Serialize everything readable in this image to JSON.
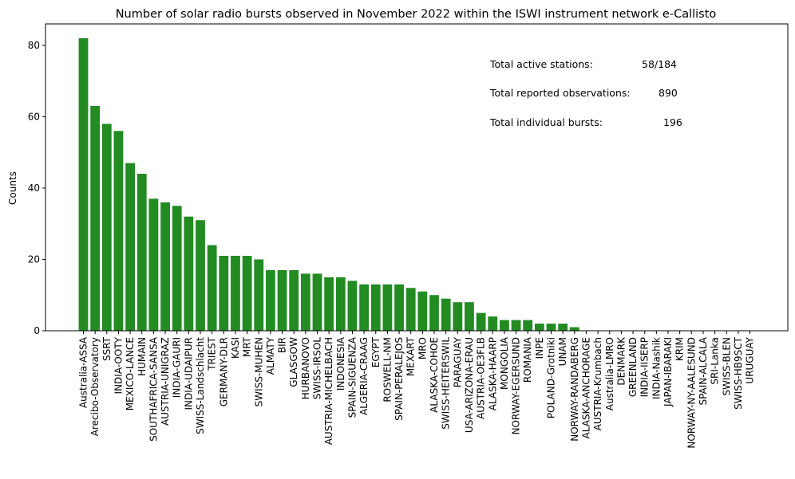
{
  "chart_data": {
    "type": "bar",
    "title": "Number of solar radio bursts observed in November 2022 within the ISWI instrument network e-Callisto",
    "xlabel": "",
    "ylabel": "Counts",
    "ylim": [
      0,
      86
    ],
    "yticks": [
      0,
      20,
      40,
      60,
      80
    ],
    "bar_color": "#228b22",
    "grid": false,
    "categories": [
      "Australia-ASSA",
      "Arecibo-Observatory",
      "SSRT",
      "INDIA-OOTY",
      "MEXICO-LANCE",
      "HUMAIN",
      "SOUTHAFRICA-SANSA",
      "AUSTRIA-UNIGRAZ",
      "INDIA-GAURI",
      "INDIA-UDAIPUR",
      "SWISS-Landschlacht",
      "TRIEST",
      "GERMANY-DLR",
      "KASI",
      "MRT",
      "SWISS-MUHEN",
      "ALMATY",
      "BIR",
      "GLASGOW",
      "HURBANOVO",
      "SWISS-IRSOL",
      "AUSTRIA-MICHELBACH",
      "INDONESIA",
      "SPAIN-SIGUENZA",
      "ALGERIA-CRAAG",
      "EGYPT",
      "ROSWELL-NM",
      "SPAIN-PERALEJOS",
      "MEXART",
      "MRO",
      "ALASKA-COHOE",
      "SWISS-HEITERSWIL",
      "PARAGUAY",
      "USA-ARIZONA-ERAU",
      "AUSTRIA-OE3FLB",
      "ALASKA-HAARP",
      "MONGOLIA",
      "NORWAY-EGERSUND",
      "ROMANIA",
      "INPE",
      "POLAND-Grotniki",
      "UNAM",
      "NORWAY-RANDABERG",
      "ALASKA-ANCHORAGE",
      "AUSTRIA-Krumbach",
      "Australia-LMRO",
      "DENMARK",
      "GREENLAND",
      "INDIA-IISERP",
      "INDIA-Nashik",
      "JAPAN-IBARAKI",
      "KRIM",
      "NORWAY-NY-AALESUND",
      "SPAIN-ALCALA",
      "SRI-Lanka",
      "SWISS-BLEN",
      "SWISS-HB9SCT",
      "URUGUAY"
    ],
    "values": [
      82,
      63,
      58,
      56,
      47,
      44,
      37,
      36,
      35,
      32,
      31,
      24,
      21,
      21,
      21,
      20,
      17,
      17,
      17,
      16,
      16,
      15,
      15,
      14,
      13,
      13,
      13,
      13,
      12,
      11,
      10,
      9,
      8,
      8,
      5,
      4,
      3,
      3,
      3,
      2,
      2,
      2,
      1,
      0,
      0,
      0,
      0,
      0,
      0,
      0,
      0,
      0,
      0,
      0,
      0,
      0,
      0,
      0
    ],
    "annotations": [
      {
        "label": "Total active stations:",
        "value": "58/184"
      },
      {
        "label": "Total reported observations:",
        "value": "890"
      },
      {
        "label": "Total individual bursts:",
        "value": "196"
      }
    ]
  }
}
